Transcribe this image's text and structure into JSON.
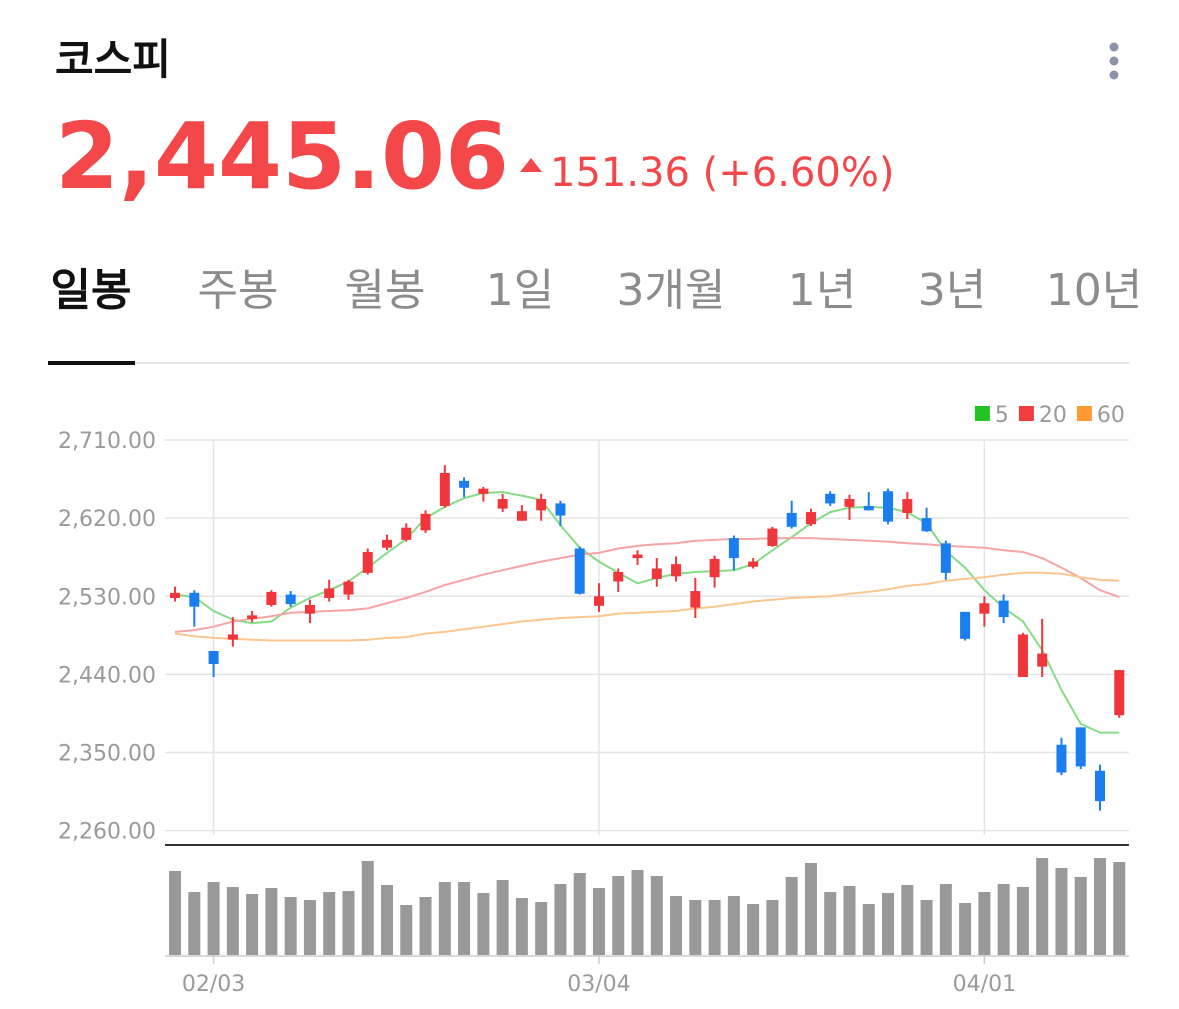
{
  "header": {
    "title": "코스피",
    "price": "2,445.06",
    "change": "151.36 (+6.60%)"
  },
  "tabs": {
    "items": [
      "일봉",
      "주봉",
      "월봉",
      "1일",
      "3개월",
      "1년",
      "3년",
      "10년"
    ],
    "active": 0
  },
  "chart_data": {
    "type": "candlestick",
    "categories": [
      null,
      null,
      "02/03",
      null,
      null,
      null,
      null,
      null,
      null,
      null,
      null,
      null,
      null,
      null,
      null,
      null,
      null,
      null,
      null,
      null,
      null,
      null,
      "03/04",
      null,
      null,
      null,
      null,
      null,
      null,
      null,
      null,
      null,
      null,
      null,
      null,
      null,
      null,
      null,
      null,
      null,
      null,
      null,
      "04/01",
      null,
      null,
      null,
      null,
      null,
      null,
      null
    ],
    "ylim": [
      2255,
      2725
    ],
    "yticks": [
      {
        "value": 2710,
        "label": "2,710.00"
      },
      {
        "value": 2620,
        "label": "2,620.00"
      },
      {
        "value": 2530,
        "label": "2,530.00"
      },
      {
        "value": 2440,
        "label": "2,440.00"
      },
      {
        "value": 2350,
        "label": "2,350.00"
      },
      {
        "value": 2260,
        "label": "2,260.00"
      }
    ],
    "grid": true,
    "up_color": "#f0353b",
    "down_color": "#1a7ef0",
    "open": [
      2528,
      2534,
      2467,
      2480,
      2504,
      2520,
      2532,
      2510,
      2528,
      2532,
      2557,
      2586,
      2595,
      2606,
      2634,
      2663,
      2648,
      2631,
      2617,
      2629,
      2637,
      2585,
      2519,
      2547,
      2574,
      2550,
      2553,
      2517,
      2552,
      2597,
      2564,
      2588,
      2626,
      2613,
      2648,
      2633,
      2634,
      2651,
      2626,
      2620,
      2591,
      2512,
      2510,
      2525,
      2437,
      2449,
      2359,
      2379,
      2329,
      2393
    ],
    "high": [
      2541,
      2537,
      2467,
      2506,
      2513,
      2537,
      2536,
      2526,
      2549,
      2549,
      2585,
      2601,
      2614,
      2629,
      2681,
      2667,
      2656,
      2648,
      2635,
      2648,
      2640,
      2587,
      2545,
      2562,
      2583,
      2574,
      2576,
      2551,
      2577,
      2600,
      2574,
      2610,
      2640,
      2631,
      2651,
      2647,
      2650,
      2654,
      2650,
      2632,
      2594,
      2512,
      2530,
      2532,
      2488,
      2504,
      2367,
      2379,
      2336,
      2445
    ],
    "low": [
      2524,
      2495,
      2437,
      2472,
      2500,
      2518,
      2518,
      2499,
      2524,
      2526,
      2555,
      2583,
      2593,
      2603,
      2632,
      2644,
      2639,
      2627,
      2617,
      2617,
      2611,
      2532,
      2512,
      2535,
      2566,
      2541,
      2547,
      2505,
      2540,
      2560,
      2562,
      2587,
      2608,
      2611,
      2634,
      2618,
      2629,
      2613,
      2619,
      2604,
      2549,
      2479,
      2495,
      2499,
      2437,
      2437,
      2324,
      2331,
      2283,
      2390
    ],
    "close": [
      2534,
      2518,
      2452,
      2486,
      2508,
      2535,
      2521,
      2520,
      2539,
      2547,
      2581,
      2595,
      2609,
      2625,
      2672,
      2655,
      2654,
      2642,
      2628,
      2642,
      2623,
      2533,
      2530,
      2558,
      2578,
      2562,
      2567,
      2536,
      2573,
      2574,
      2570,
      2608,
      2610,
      2627,
      2637,
      2642,
      2629,
      2616,
      2642,
      2605,
      2557,
      2481,
      2522,
      2506,
      2486,
      2464,
      2327,
      2334,
      2294,
      2445
    ],
    "series": [
      {
        "name": "5",
        "color": "#22c322",
        "line_color": "#86dc86",
        "values": [
          2532,
          2529,
          2513,
          2503,
          2499,
          2501,
          2517,
          2528,
          2537,
          2547,
          2563,
          2580,
          2596,
          2620,
          2633,
          2643,
          2649,
          2650,
          2646,
          2641,
          2612,
          2586,
          2570,
          2557,
          2545,
          2551,
          2556,
          2558,
          2559,
          2560,
          2567,
          2583,
          2598,
          2614,
          2627,
          2632,
          2633,
          2632,
          2627,
          2614,
          2582,
          2563,
          2537,
          2517,
          2501,
          2468,
          2422,
          2383,
          2373,
          2373
        ]
      },
      {
        "name": "20",
        "color": "#f03c3c",
        "line_color": "#f7a4a6",
        "values": [
          2489,
          2491,
          2495,
          2501,
          2504,
          2507,
          2511,
          2512,
          2513,
          2514,
          2516,
          2522,
          2528,
          2535,
          2543,
          2549,
          2555,
          2560,
          2565,
          2570,
          2574,
          2578,
          2580,
          2585,
          2588,
          2590,
          2591,
          2594,
          2595,
          2596,
          2596,
          2597,
          2597,
          2597,
          2596,
          2595,
          2594,
          2593,
          2591,
          2590,
          2588,
          2587,
          2586,
          2583,
          2581,
          2574,
          2563,
          2551,
          2537,
          2529
        ]
      },
      {
        "name": "60",
        "color": "#ff9933",
        "line_color": "#fcc690",
        "values": [
          2487,
          2484,
          2482,
          2481,
          2480,
          2479,
          2479,
          2479,
          2479,
          2479,
          2480,
          2482,
          2483,
          2487,
          2489,
          2492,
          2495,
          2498,
          2501,
          2503,
          2505,
          2506,
          2507,
          2510,
          2511,
          2512,
          2513,
          2516,
          2518,
          2521,
          2524,
          2526,
          2528,
          2529,
          2530,
          2533,
          2535,
          2538,
          2542,
          2544,
          2548,
          2550,
          2552,
          2555,
          2557,
          2557,
          2556,
          2552,
          2549,
          2548
        ]
      }
    ],
    "volume": {
      "color": "#999999",
      "ylim": [
        0,
        100
      ],
      "values": [
        84,
        63,
        73,
        68,
        61,
        67,
        58,
        55,
        63,
        64,
        94,
        70,
        50,
        58,
        73,
        73,
        62,
        75,
        57,
        53,
        71,
        82,
        67,
        79,
        85,
        79,
        59,
        55,
        55,
        59,
        51,
        55,
        78,
        92,
        63,
        69,
        51,
        62,
        70,
        55,
        71,
        52,
        63,
        71,
        68,
        97,
        87,
        78,
        97,
        93
      ]
    }
  }
}
